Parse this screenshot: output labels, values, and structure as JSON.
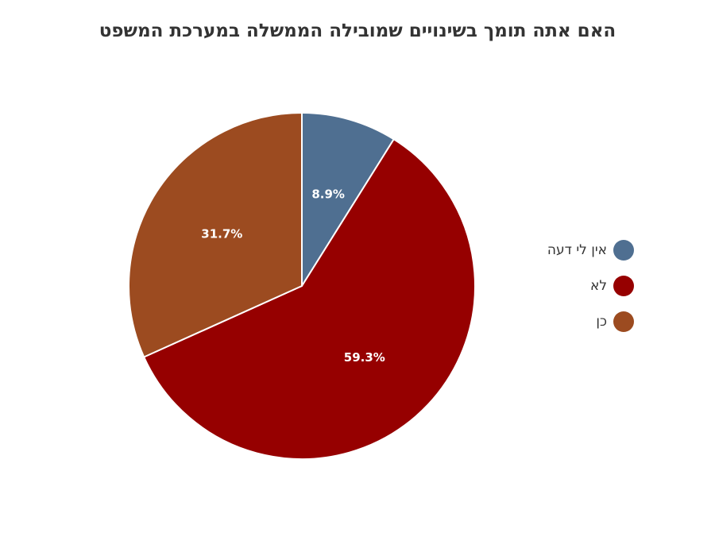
{
  "chart_data": {
    "type": "pie",
    "title": "האם אתה תומך בשינויים שמובילה הממשלה במערכת המשפט",
    "legend_position": "right",
    "slices": [
      {
        "label": "אין לי דעה",
        "value": 8.9,
        "display": "8.9%",
        "color": "#4f6f91"
      },
      {
        "label": "לא",
        "value": 59.3,
        "display": "59.3%",
        "color": "#960000"
      },
      {
        "label": "כן",
        "value": 31.7,
        "display": "31.7%",
        "color": "#9c4b20"
      }
    ]
  }
}
